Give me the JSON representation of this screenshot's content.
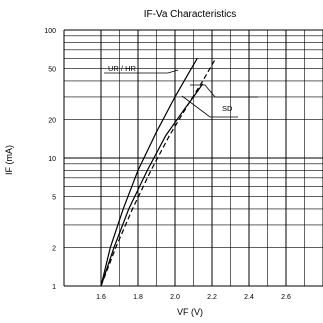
{
  "chart_data": {
    "type": "line",
    "title": "IF-Va  Characteristics",
    "xlabel": "VF (V)",
    "ylabel": "IF (mA)",
    "x_scale": "linear",
    "y_scale": "log",
    "xlim": [
      1.4,
      2.8
    ],
    "ylim": [
      1,
      100
    ],
    "x_ticks": [
      {
        "value": 1.6,
        "label": "1.6"
      },
      {
        "value": 1.8,
        "label": "1.8"
      },
      {
        "value": 2.0,
        "label": "2.0"
      },
      {
        "value": 2.2,
        "label": "2.2"
      },
      {
        "value": 2.4,
        "label": "2.4"
      },
      {
        "value": 2.6,
        "label": "2.6"
      }
    ],
    "y_ticks": [
      {
        "value": 1,
        "label": "1"
      },
      {
        "value": 2,
        "label": "2"
      },
      {
        "value": 5,
        "label": "5"
      },
      {
        "value": 10,
        "label": "10"
      },
      {
        "value": 20,
        "label": "20"
      },
      {
        "value": 50,
        "label": "50"
      },
      {
        "value": 100,
        "label": "100"
      }
    ],
    "grid": true,
    "series": [
      {
        "name": "UR / HR",
        "style": "solid",
        "points": [
          [
            1.6,
            1
          ],
          [
            1.65,
            2
          ],
          [
            1.72,
            4
          ],
          [
            1.8,
            8
          ],
          [
            1.9,
            16
          ],
          [
            2.0,
            30
          ],
          [
            2.07,
            45
          ],
          [
            2.12,
            60
          ]
        ]
      },
      {
        "name": "SD",
        "style": "solid",
        "points": [
          [
            1.6,
            1
          ],
          [
            1.67,
            2
          ],
          [
            1.75,
            4
          ],
          [
            1.85,
            8
          ],
          [
            1.95,
            15
          ],
          [
            2.05,
            24
          ],
          [
            2.1,
            30
          ],
          [
            2.15,
            38
          ]
        ]
      },
      {
        "name": "",
        "style": "dashed",
        "points": [
          [
            1.6,
            1
          ],
          [
            1.68,
            2
          ],
          [
            1.77,
            4
          ],
          [
            1.87,
            8
          ],
          [
            1.97,
            15
          ],
          [
            2.07,
            26
          ],
          [
            2.15,
            40
          ],
          [
            2.22,
            60
          ]
        ]
      }
    ],
    "annotations": [
      {
        "text": "UR / HR",
        "series": 0
      },
      {
        "text": "SD",
        "series": 1
      }
    ]
  }
}
